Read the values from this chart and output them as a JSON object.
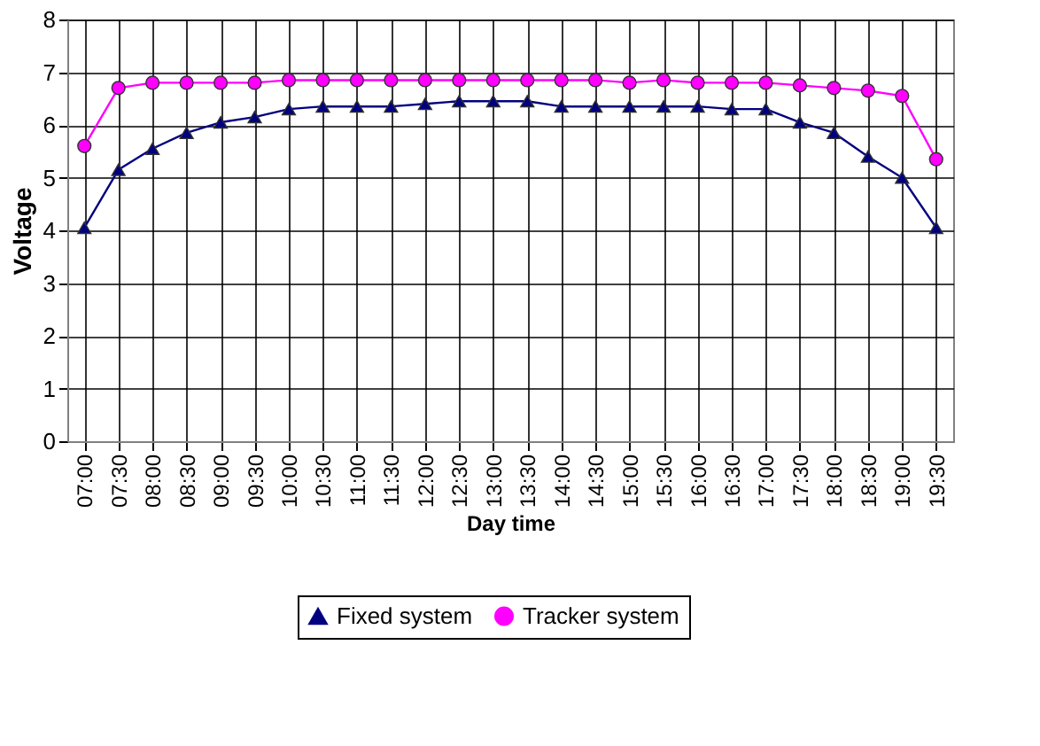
{
  "chart_data": {
    "type": "line",
    "xlabel": "Day time",
    "ylabel": "Voltage",
    "categories": [
      "07:00",
      "07:30",
      "08:00",
      "08:30",
      "09:00",
      "09:30",
      "10:00",
      "10:30",
      "11:00",
      "11:30",
      "12:00",
      "12:30",
      "13:00",
      "13:30",
      "14:00",
      "14:30",
      "15:00",
      "15:30",
      "16:00",
      "16:30",
      "17:00",
      "17:30",
      "18:00",
      "18:30",
      "19:00",
      "19:30"
    ],
    "series": [
      {
        "name": "Fixed system",
        "color": "#000080",
        "marker": "triangle",
        "values": [
          4.05,
          5.15,
          5.55,
          5.85,
          6.05,
          6.15,
          6.3,
          6.35,
          6.35,
          6.35,
          6.4,
          6.45,
          6.45,
          6.45,
          6.35,
          6.35,
          6.35,
          6.35,
          6.35,
          6.3,
          6.3,
          6.05,
          5.85,
          5.4,
          5.0,
          4.05
        ]
      },
      {
        "name": "Tracker system",
        "color": "#ff00ff",
        "marker": "circle",
        "values": [
          5.6,
          6.7,
          6.8,
          6.8,
          6.8,
          6.8,
          6.85,
          6.85,
          6.85,
          6.85,
          6.85,
          6.85,
          6.85,
          6.85,
          6.85,
          6.85,
          6.8,
          6.85,
          6.8,
          6.8,
          6.8,
          6.75,
          6.7,
          6.65,
          6.55,
          5.35
        ]
      }
    ],
    "ylim": [
      0,
      8
    ],
    "yticks": [
      0,
      1,
      2,
      3,
      4,
      5,
      6,
      7,
      8
    ],
    "grid": true,
    "legend": "bottom"
  }
}
